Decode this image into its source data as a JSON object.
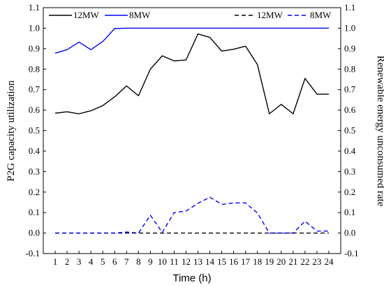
{
  "chart_data": {
    "type": "line",
    "xlabel": "Time (h)",
    "ylabel_left": "P2G capacity utilization",
    "ylabel_right": "Renewable energy unconsumed rate",
    "x": [
      1,
      2,
      3,
      4,
      5,
      6,
      7,
      8,
      9,
      10,
      11,
      12,
      13,
      14,
      15,
      16,
      17,
      18,
      19,
      20,
      21,
      22,
      23,
      24
    ],
    "xlim": [
      0,
      25
    ],
    "ylim_left": [
      -0.1,
      1.1
    ],
    "ylim_right": [
      -0.1,
      1.1
    ],
    "yticks": [
      -0.1,
      0.0,
      0.1,
      0.2,
      0.3,
      0.4,
      0.5,
      0.6,
      0.7,
      0.8,
      0.9,
      1.0,
      1.1
    ],
    "ytick_labels": [
      "-0.1",
      "0.0",
      "0.1",
      "0.2",
      "0.3",
      "0.4",
      "0.5",
      "0.6",
      "0.7",
      "0.8",
      "0.9",
      "1.0",
      "1.1"
    ],
    "xtick_labels": [
      "1",
      "2",
      "3",
      "4",
      "5",
      "6",
      "7",
      "8",
      "9",
      "10",
      "11",
      "12",
      "13",
      "14",
      "15",
      "16",
      "17",
      "18",
      "19",
      "20",
      "21",
      "22",
      "23",
      "24"
    ],
    "grid": false,
    "series": [
      {
        "name": "12MW",
        "axis": "left",
        "color": "#000000",
        "style": "solid",
        "values": [
          0.585,
          0.592,
          0.582,
          0.597,
          0.622,
          0.665,
          0.718,
          0.67,
          0.8,
          0.865,
          0.84,
          0.845,
          0.972,
          0.955,
          0.888,
          0.897,
          0.912,
          0.822,
          0.582,
          0.628,
          0.582,
          0.755,
          0.678,
          0.678
        ]
      },
      {
        "name": "8MW",
        "axis": "left",
        "color": "#0000ff",
        "style": "solid",
        "values": [
          0.878,
          0.895,
          0.932,
          0.895,
          0.935,
          0.998,
          1.0,
          1.0,
          1.0,
          1.0,
          1.0,
          1.0,
          1.0,
          1.0,
          1.0,
          1.0,
          1.0,
          1.0,
          1.0,
          1.0,
          1.0,
          1.0,
          1.0,
          1.0
        ]
      },
      {
        "name": "12MW",
        "axis": "right",
        "color": "#000000",
        "style": "dashed",
        "values": [
          0,
          0,
          0,
          0,
          0,
          0,
          0,
          0,
          0,
          0,
          0,
          0,
          0,
          0,
          0,
          0,
          0,
          0,
          0,
          0,
          0,
          0,
          0,
          0
        ]
      },
      {
        "name": "8MW",
        "axis": "right",
        "color": "#0000ff",
        "style": "dashed",
        "values": [
          0,
          0,
          0,
          0,
          0,
          0,
          0.005,
          0,
          0.087,
          0.003,
          0.1,
          0.108,
          0.145,
          0.175,
          0.14,
          0.147,
          0.147,
          0.098,
          0,
          0,
          0,
          0.058,
          0.01,
          0.01
        ]
      }
    ],
    "legend": [
      {
        "label": "12MW",
        "color": "#000000",
        "style": "solid",
        "position": "top-left"
      },
      {
        "label": "8MW",
        "color": "#0000ff",
        "style": "solid",
        "position": "top-left"
      },
      {
        "label": "12MW",
        "color": "#000000",
        "style": "dashed",
        "position": "top-right"
      },
      {
        "label": "8MW",
        "color": "#0000ff",
        "style": "dashed",
        "position": "top-right"
      }
    ]
  }
}
